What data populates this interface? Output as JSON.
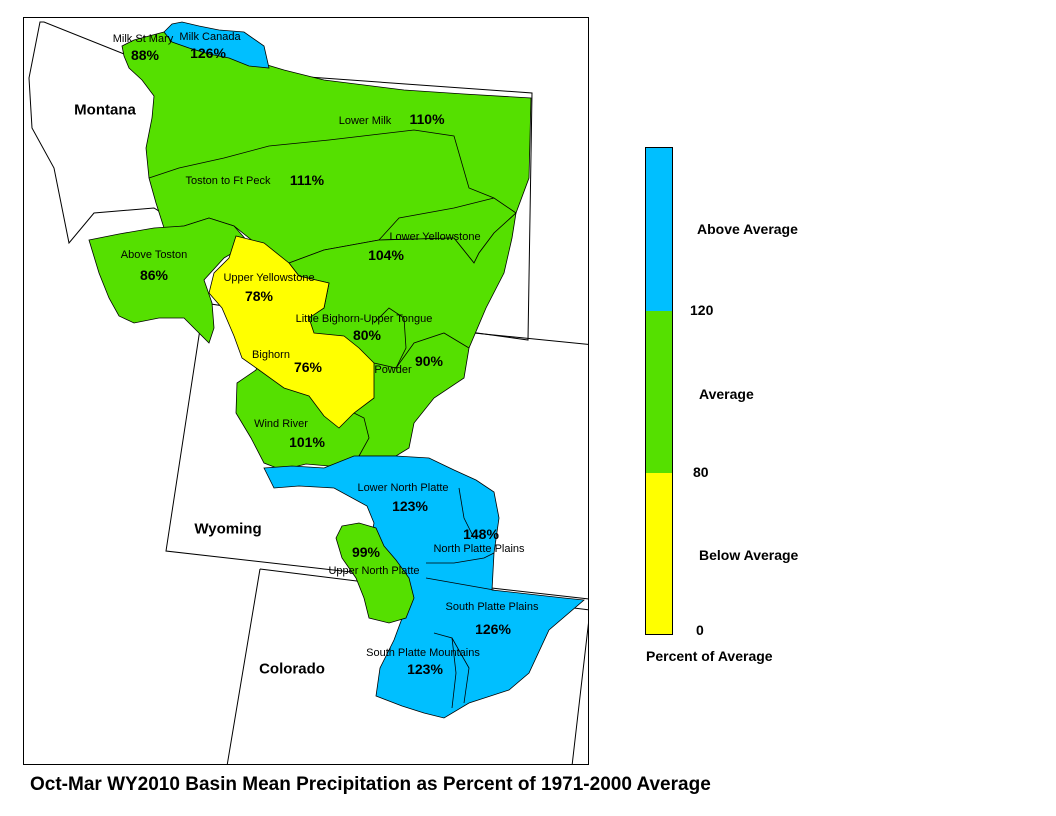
{
  "map": {
    "title": "Oct-Mar WY2010 Basin Mean Precipitation as Percent of 1971-2000 Average",
    "states": [
      {
        "id": "montana",
        "name": "Montana"
      },
      {
        "id": "wyoming",
        "name": "Wyoming"
      },
      {
        "id": "colorado",
        "name": "Colorado"
      }
    ],
    "basins": [
      {
        "id": "milk-st-mary",
        "name": "Milk St Mary",
        "percent": "88%",
        "category": "average"
      },
      {
        "id": "milk-canada",
        "name": "Milk Canada",
        "percent": "126%",
        "category": "above"
      },
      {
        "id": "lower-milk",
        "name": "Lower Milk",
        "percent": "110%",
        "category": "average"
      },
      {
        "id": "toston-ft-peck",
        "name": "Toston to Ft Peck",
        "percent": "111%",
        "category": "average"
      },
      {
        "id": "above-toston",
        "name": "Above Toston",
        "percent": "86%",
        "category": "average"
      },
      {
        "id": "upper-yellowstone",
        "name": "Upper Yellowstone",
        "percent": "78%",
        "category": "below"
      },
      {
        "id": "lower-yellowstone",
        "name": "Lower Yellowstone",
        "percent": "104%",
        "category": "average"
      },
      {
        "id": "little-bighorn-upper-tongue",
        "name": "Little Bighorn-Upper Tongue",
        "percent": "80%",
        "category": "average"
      },
      {
        "id": "bighorn",
        "name": "Bighorn",
        "percent": "76%",
        "category": "below"
      },
      {
        "id": "powder",
        "name": "Powder",
        "percent": "90%",
        "category": "average"
      },
      {
        "id": "wind-river",
        "name": "Wind River",
        "percent": "101%",
        "category": "average"
      },
      {
        "id": "lower-north-platte",
        "name": "Lower North Platte",
        "percent": "123%",
        "category": "above"
      },
      {
        "id": "north-platte-plains",
        "name": "North Platte Plains",
        "percent": "148%",
        "category": "above"
      },
      {
        "id": "upper-north-platte",
        "name": "Upper North Platte",
        "percent": "99%",
        "category": "average"
      },
      {
        "id": "south-platte-plains",
        "name": "South Platte Plains",
        "percent": "126%",
        "category": "above"
      },
      {
        "id": "south-platte-mountains",
        "name": "South Platte Mountains",
        "percent": "123%",
        "category": "above"
      }
    ]
  },
  "legend": {
    "title": "Percent of Average",
    "categories": [
      {
        "id": "above",
        "label": "Above Average",
        "color": "#00bfff",
        "range": [
          120,
          null
        ]
      },
      {
        "id": "average",
        "label": "Average",
        "color": "#55e000",
        "range": [
          80,
          120
        ]
      },
      {
        "id": "below",
        "label": "Below Average",
        "color": "#ffff00",
        "range": [
          0,
          80
        ]
      }
    ],
    "ticks": [
      "120",
      "80",
      "0"
    ]
  }
}
